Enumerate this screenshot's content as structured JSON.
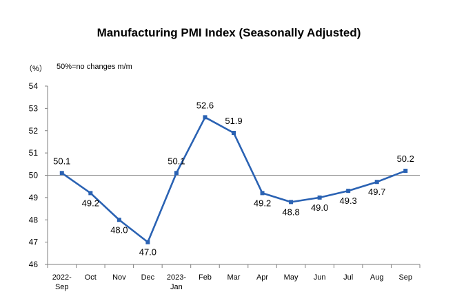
{
  "chart_data": {
    "type": "line",
    "title": "Manufacturing PMI Index (Seasonally Adjusted)",
    "unit_label": "（%）",
    "note": "50%=no changes m/m",
    "x": [
      "2022-Sep",
      "Oct",
      "Nov",
      "Dec",
      "2023-Jan",
      "Feb",
      "Mar",
      "Apr",
      "May",
      "Jun",
      "Jul",
      "Aug",
      "Sep"
    ],
    "x_tick_lines": [
      [
        "2022-",
        "Sep"
      ],
      [
        "Oct"
      ],
      [
        "Nov"
      ],
      [
        "Dec"
      ],
      [
        "2023-",
        "Jan"
      ],
      [
        "Feb"
      ],
      [
        "Mar"
      ],
      [
        "Apr"
      ],
      [
        "May"
      ],
      [
        "Jun"
      ],
      [
        "Jul"
      ],
      [
        "Aug"
      ],
      [
        "Sep"
      ]
    ],
    "series": [
      {
        "values": [
          50.1,
          49.2,
          48.0,
          47.0,
          50.1,
          52.6,
          51.9,
          49.2,
          48.8,
          49.0,
          49.3,
          49.7,
          50.2
        ],
        "data_labels": [
          "50.1",
          "49.2",
          "48.0",
          "47.0",
          "50.1",
          "52.6",
          "51.9",
          "49.2",
          "48.8",
          "49.0",
          "49.3",
          "49.7",
          "50.2"
        ],
        "color": "#2a62b3"
      }
    ],
    "ylim": [
      46,
      54
    ],
    "yticks": [
      "46",
      "47",
      "48",
      "49",
      "50",
      "51",
      "52",
      "53",
      "54"
    ],
    "reference_line": 50,
    "grid": false,
    "legend": "none"
  }
}
